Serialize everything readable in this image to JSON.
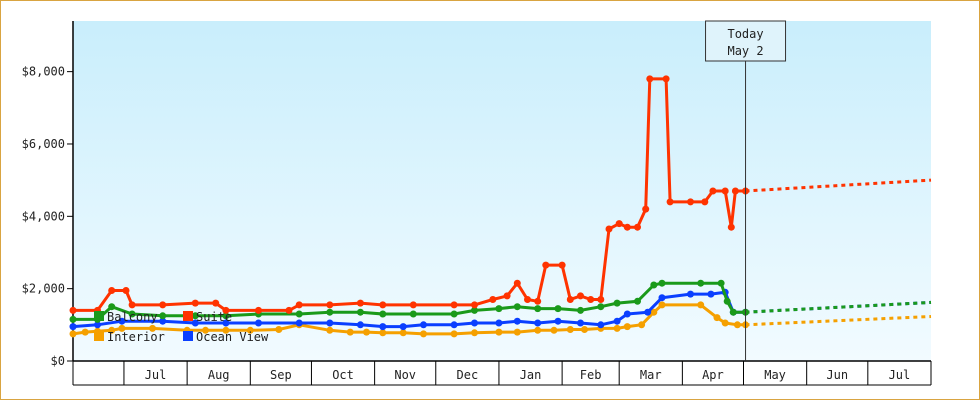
{
  "chart_data": {
    "type": "line",
    "title": "",
    "xlabel": "",
    "ylabel": "",
    "ylim": [
      0,
      9400
    ],
    "y_ticks": [
      0,
      2000,
      4000,
      6000,
      8000
    ],
    "y_tick_labels": [
      "$0",
      "$2,000",
      "$4,000",
      "$6,000",
      "$8,000"
    ],
    "x_months": [
      "Jul",
      "Aug",
      "Sep",
      "Oct",
      "Nov",
      "Dec",
      "Jan",
      "Feb",
      "Mar",
      "Apr",
      "May",
      "Jun",
      "Jul"
    ],
    "x_range": [
      "2013-06-06",
      "2014-08-01"
    ],
    "grid": false,
    "legend_position": "bottom-left",
    "today": {
      "label": "Today",
      "date_label": "May 2",
      "date": "2014-05-02"
    },
    "colors": {
      "interior": "#f5a000",
      "ocean_view": "#0a3fff",
      "balcony": "#1a9a1a",
      "suite": "#ff3300",
      "plot_top": "#c9eefc",
      "plot_bottom": "#f2fbff"
    },
    "series": [
      {
        "name": "Interior",
        "key": "interior",
        "values": [
          [
            "2013-06-06",
            750
          ],
          [
            "2013-06-12",
            800
          ],
          [
            "2013-06-18",
            820
          ],
          [
            "2013-06-25",
            850
          ],
          [
            "2013-06-30",
            900
          ],
          [
            "2013-07-15",
            900
          ],
          [
            "2013-08-01",
            850
          ],
          [
            "2013-08-10",
            850
          ],
          [
            "2013-08-20",
            850
          ],
          [
            "2013-09-01",
            850
          ],
          [
            "2013-09-15",
            870
          ],
          [
            "2013-09-25",
            1000
          ],
          [
            "2013-10-10",
            850
          ],
          [
            "2013-10-20",
            800
          ],
          [
            "2013-10-28",
            800
          ],
          [
            "2013-11-05",
            780
          ],
          [
            "2013-11-15",
            780
          ],
          [
            "2013-11-25",
            750
          ],
          [
            "2013-12-10",
            750
          ],
          [
            "2013-12-20",
            780
          ],
          [
            "2014-01-01",
            800
          ],
          [
            "2014-01-10",
            800
          ],
          [
            "2014-01-20",
            850
          ],
          [
            "2014-01-28",
            850
          ],
          [
            "2014-02-05",
            870
          ],
          [
            "2014-02-12",
            870
          ],
          [
            "2014-02-20",
            900
          ],
          [
            "2014-02-28",
            900
          ],
          [
            "2014-03-05",
            950
          ],
          [
            "2014-03-12",
            1000
          ],
          [
            "2014-03-18",
            1350
          ],
          [
            "2014-03-22",
            1550
          ],
          [
            "2014-04-10",
            1550
          ],
          [
            "2014-04-18",
            1200
          ],
          [
            "2014-04-22",
            1050
          ],
          [
            "2014-04-28",
            1000
          ],
          [
            "2014-05-02",
            1000
          ]
        ],
        "forecast": [
          [
            "2014-05-02",
            1000
          ],
          [
            "2014-08-01",
            1230
          ]
        ]
      },
      {
        "name": "Ocean View",
        "key": "ocean_view",
        "values": [
          [
            "2013-06-06",
            950
          ],
          [
            "2013-06-18",
            1000
          ],
          [
            "2013-06-30",
            1100
          ],
          [
            "2013-07-20",
            1100
          ],
          [
            "2013-08-05",
            1050
          ],
          [
            "2013-08-20",
            1050
          ],
          [
            "2013-09-05",
            1050
          ],
          [
            "2013-09-25",
            1050
          ],
          [
            "2013-10-10",
            1050
          ],
          [
            "2013-10-25",
            1000
          ],
          [
            "2013-11-05",
            950
          ],
          [
            "2013-11-15",
            950
          ],
          [
            "2013-11-25",
            1000
          ],
          [
            "2013-12-10",
            1000
          ],
          [
            "2013-12-20",
            1050
          ],
          [
            "2014-01-01",
            1050
          ],
          [
            "2014-01-10",
            1100
          ],
          [
            "2014-01-20",
            1050
          ],
          [
            "2014-01-30",
            1100
          ],
          [
            "2014-02-10",
            1050
          ],
          [
            "2014-02-20",
            1000
          ],
          [
            "2014-02-28",
            1100
          ],
          [
            "2014-03-05",
            1300
          ],
          [
            "2014-03-15",
            1350
          ],
          [
            "2014-03-22",
            1750
          ],
          [
            "2014-04-05",
            1850
          ],
          [
            "2014-04-15",
            1850
          ],
          [
            "2014-04-22",
            1900
          ],
          [
            "2014-04-26",
            1350
          ],
          [
            "2014-05-02",
            1350
          ]
        ],
        "forecast": [
          [
            "2014-05-02",
            1350
          ],
          [
            "2014-08-01",
            1620
          ]
        ]
      },
      {
        "name": "Balcony",
        "key": "balcony",
        "values": [
          [
            "2013-06-06",
            1150
          ],
          [
            "2013-06-18",
            1150
          ],
          [
            "2013-06-25",
            1500
          ],
          [
            "2013-07-05",
            1300
          ],
          [
            "2013-07-20",
            1250
          ],
          [
            "2013-08-05",
            1250
          ],
          [
            "2013-08-20",
            1250
          ],
          [
            "2013-09-05",
            1300
          ],
          [
            "2013-09-25",
            1300
          ],
          [
            "2013-10-10",
            1350
          ],
          [
            "2013-10-25",
            1350
          ],
          [
            "2013-11-05",
            1300
          ],
          [
            "2013-11-20",
            1300
          ],
          [
            "2013-12-10",
            1300
          ],
          [
            "2013-12-20",
            1400
          ],
          [
            "2014-01-01",
            1450
          ],
          [
            "2014-01-10",
            1500
          ],
          [
            "2014-01-20",
            1450
          ],
          [
            "2014-01-30",
            1450
          ],
          [
            "2014-02-10",
            1400
          ],
          [
            "2014-02-20",
            1500
          ],
          [
            "2014-02-28",
            1600
          ],
          [
            "2014-03-10",
            1650
          ],
          [
            "2014-03-18",
            2100
          ],
          [
            "2014-03-22",
            2150
          ],
          [
            "2014-04-10",
            2150
          ],
          [
            "2014-04-20",
            2150
          ],
          [
            "2014-04-23",
            1650
          ],
          [
            "2014-04-26",
            1350
          ],
          [
            "2014-05-02",
            1350
          ]
        ],
        "forecast": [
          [
            "2014-05-02",
            1350
          ],
          [
            "2014-08-01",
            1620
          ]
        ]
      },
      {
        "name": "Suite",
        "key": "suite",
        "values": [
          [
            "2013-06-06",
            1400
          ],
          [
            "2013-06-18",
            1400
          ],
          [
            "2013-06-25",
            1950
          ],
          [
            "2013-07-02",
            1950
          ],
          [
            "2013-07-05",
            1550
          ],
          [
            "2013-07-20",
            1550
          ],
          [
            "2013-08-05",
            1600
          ],
          [
            "2013-08-15",
            1600
          ],
          [
            "2013-08-20",
            1400
          ],
          [
            "2013-09-05",
            1400
          ],
          [
            "2013-09-20",
            1400
          ],
          [
            "2013-09-25",
            1550
          ],
          [
            "2013-10-10",
            1550
          ],
          [
            "2013-10-25",
            1600
          ],
          [
            "2013-11-05",
            1550
          ],
          [
            "2013-11-20",
            1550
          ],
          [
            "2013-12-10",
            1550
          ],
          [
            "2013-12-20",
            1550
          ],
          [
            "2013-12-29",
            1700
          ],
          [
            "2014-01-05",
            1800
          ],
          [
            "2014-01-10",
            2150
          ],
          [
            "2014-01-15",
            1700
          ],
          [
            "2014-01-20",
            1650
          ],
          [
            "2014-01-24",
            2650
          ],
          [
            "2014-02-01",
            2650
          ],
          [
            "2014-02-05",
            1700
          ],
          [
            "2014-02-10",
            1800
          ],
          [
            "2014-02-15",
            1700
          ],
          [
            "2014-02-20",
            1700
          ],
          [
            "2014-02-24",
            3650
          ],
          [
            "2014-03-01",
            3800
          ],
          [
            "2014-03-05",
            3700
          ],
          [
            "2014-03-10",
            3700
          ],
          [
            "2014-03-14",
            4200
          ],
          [
            "2014-03-16",
            7800
          ],
          [
            "2014-03-24",
            7800
          ],
          [
            "2014-03-26",
            4400
          ],
          [
            "2014-04-05",
            4400
          ],
          [
            "2014-04-12",
            4400
          ],
          [
            "2014-04-16",
            4700
          ],
          [
            "2014-04-22",
            4700
          ],
          [
            "2014-04-25",
            3700
          ],
          [
            "2014-04-27",
            4700
          ],
          [
            "2014-05-02",
            4700
          ]
        ],
        "forecast": [
          [
            "2014-05-02",
            4700
          ],
          [
            "2014-08-01",
            5000
          ]
        ]
      }
    ]
  }
}
